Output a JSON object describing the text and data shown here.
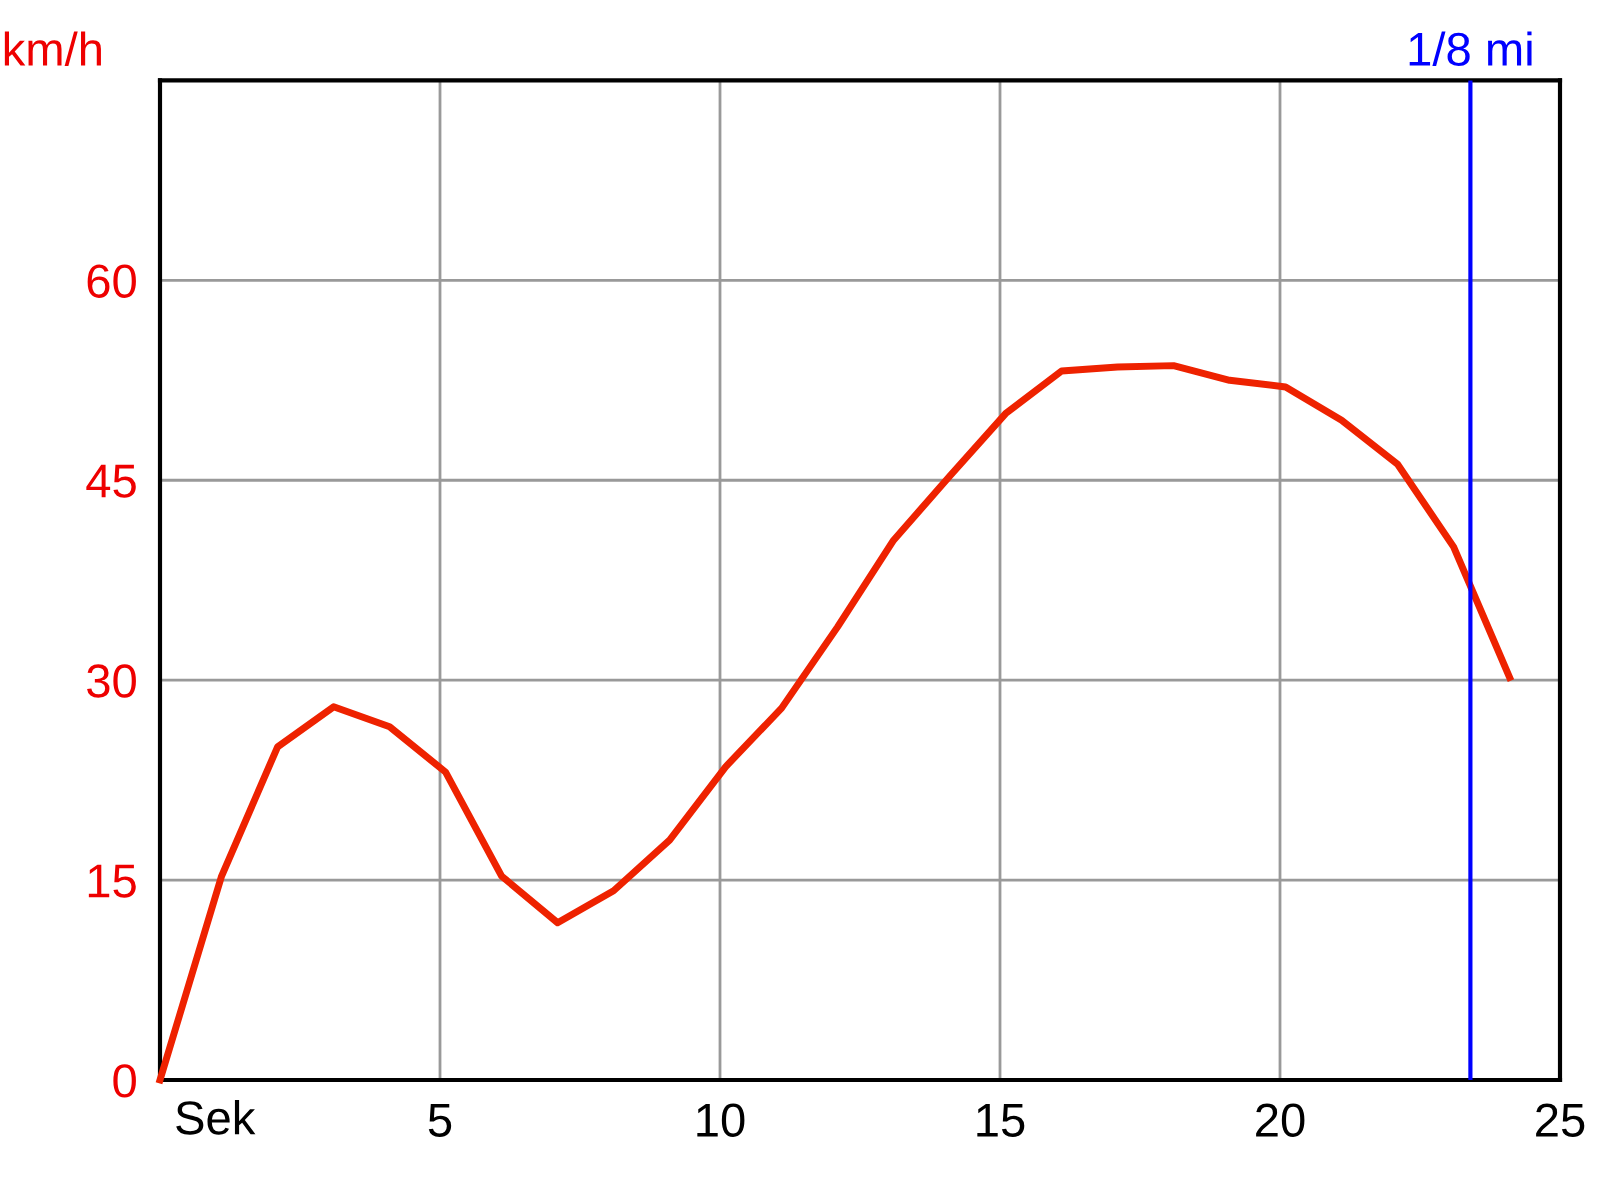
{
  "chart_data": {
    "type": "line",
    "xlabel": "Sek",
    "ylabel": "km/h",
    "x": [
      0,
      1.1,
      2.1,
      3.1,
      4.1,
      5.1,
      6.1,
      7.1,
      8.1,
      9.1,
      10.1,
      11.1,
      12.1,
      13.1,
      14.1,
      15.1,
      16.1,
      17.1,
      18.1,
      19.1,
      20.1,
      21.1,
      22.1,
      23.1,
      24.1
    ],
    "series": [
      {
        "color": "#ee2200",
        "values": [
          0,
          15.3,
          25,
          28,
          26.5,
          23.1,
          15.3,
          11.8,
          14.2,
          18,
          23.5,
          27.9,
          34,
          40.5,
          45.3,
          50,
          53.2,
          53.5,
          53.6,
          52.5,
          52,
          49.5,
          46.2,
          40,
          30.2
        ]
      }
    ],
    "xlim": [
      0,
      25
    ],
    "xticks": [
      5,
      10,
      15,
      20,
      25
    ],
    "ylim": [
      0,
      75
    ],
    "yticks": [
      0,
      15,
      30,
      45,
      60
    ],
    "grid": true,
    "marker": "none",
    "line_style": "solid",
    "ref_lines": [
      {
        "axis": "x",
        "value": 23.4,
        "label": "1/8 mi",
        "color": "#0000ff"
      }
    ]
  }
}
